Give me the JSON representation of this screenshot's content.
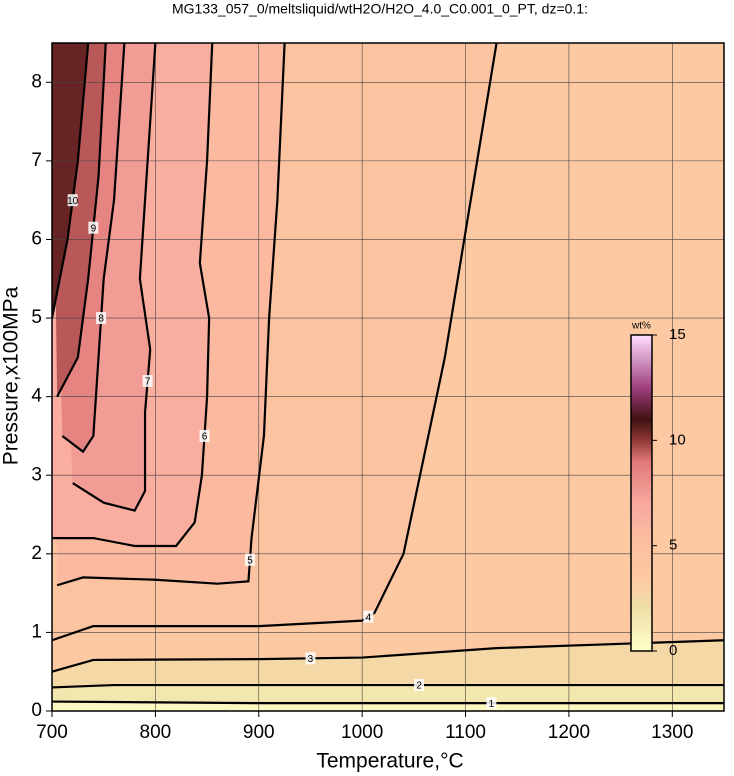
{
  "chart_data": {
    "type": "contour",
    "title": "MG133_057_0/meltsliquid/wtH2O/H2O_4.0_C0.001_0_PT, dz=0.1:",
    "x_label": "Temperature,°C",
    "y_label": "Pressure,x100MPa",
    "xlim": [
      700,
      1350
    ],
    "ylim": [
      0,
      8.5
    ],
    "xticks": [
      700,
      800,
      900,
      1000,
      1100,
      1200,
      1300
    ],
    "yticks": [
      0,
      1,
      2,
      3,
      4,
      5,
      6,
      7,
      8
    ],
    "grid": true,
    "colorbar": {
      "label": "wt%",
      "lim": [
        0,
        15
      ],
      "ticks": [
        0,
        5,
        10,
        15
      ],
      "colormap": [
        {
          "value": 0,
          "color": "#ffffc8"
        },
        {
          "value": 2,
          "color": "#efdfa8"
        },
        {
          "value": 3.5,
          "color": "#fdc9a2"
        },
        {
          "value": 5,
          "color": "#fcc0a0"
        },
        {
          "value": 7,
          "color": "#f8a8a0"
        },
        {
          "value": 9,
          "color": "#e07878"
        },
        {
          "value": 10,
          "color": "#903838"
        },
        {
          "value": 11,
          "color": "#401010"
        },
        {
          "value": 12.5,
          "color": "#a04080"
        },
        {
          "value": 15,
          "color": "#ffe0ff"
        }
      ]
    },
    "contours": [
      {
        "level": 1,
        "x": [
          700,
          900,
          1350
        ],
        "y": [
          0.12,
          0.1,
          0.1
        ]
      },
      {
        "level": 2,
        "x": [
          700,
          760,
          1350
        ],
        "y": [
          0.3,
          0.33,
          0.33
        ]
      },
      {
        "level": 3,
        "x": [
          700,
          740,
          900,
          1000,
          1130,
          1350
        ],
        "y": [
          0.5,
          0.65,
          0.66,
          0.68,
          0.8,
          0.9
        ]
      },
      {
        "level": 4,
        "x": [
          700,
          740,
          900,
          1000,
          1012,
          1040,
          1080,
          1130
        ],
        "y": [
          0.9,
          1.08,
          1.08,
          1.15,
          1.25,
          2.0,
          4.5,
          8.5
        ]
      },
      {
        "level": 5,
        "x": [
          705,
          730,
          800,
          860,
          890,
          893,
          905,
          910,
          918,
          925
        ],
        "y": [
          1.6,
          1.7,
          1.67,
          1.62,
          1.65,
          2.2,
          3.5,
          5.0,
          6.5,
          8.5
        ]
      },
      {
        "level": 6,
        "x": [
          700,
          740,
          780,
          820,
          838,
          845,
          850,
          852,
          843,
          850,
          855
        ],
        "y": [
          2.2,
          2.2,
          2.1,
          2.1,
          2.4,
          3.0,
          4.0,
          5.0,
          5.7,
          7.0,
          8.5
        ]
      },
      {
        "level": 7,
        "x": [
          720,
          750,
          780,
          790,
          790,
          795,
          785,
          790,
          800
        ],
        "y": [
          2.9,
          2.65,
          2.55,
          2.8,
          3.8,
          4.6,
          5.5,
          6.5,
          8.5
        ]
      },
      {
        "level": 8,
        "x": [
          710,
          730,
          740,
          745,
          750,
          760,
          770
        ],
        "y": [
          3.5,
          3.3,
          3.5,
          4.5,
          5.5,
          6.5,
          8.5
        ]
      },
      {
        "level": 9,
        "x": [
          705,
          725,
          735,
          745,
          752
        ],
        "y": [
          4.0,
          4.5,
          5.5,
          6.8,
          8.5
        ]
      },
      {
        "level": 10,
        "x": [
          700,
          715,
          725,
          735
        ],
        "y": [
          5.0,
          6.0,
          7.0,
          8.5
        ]
      }
    ]
  }
}
